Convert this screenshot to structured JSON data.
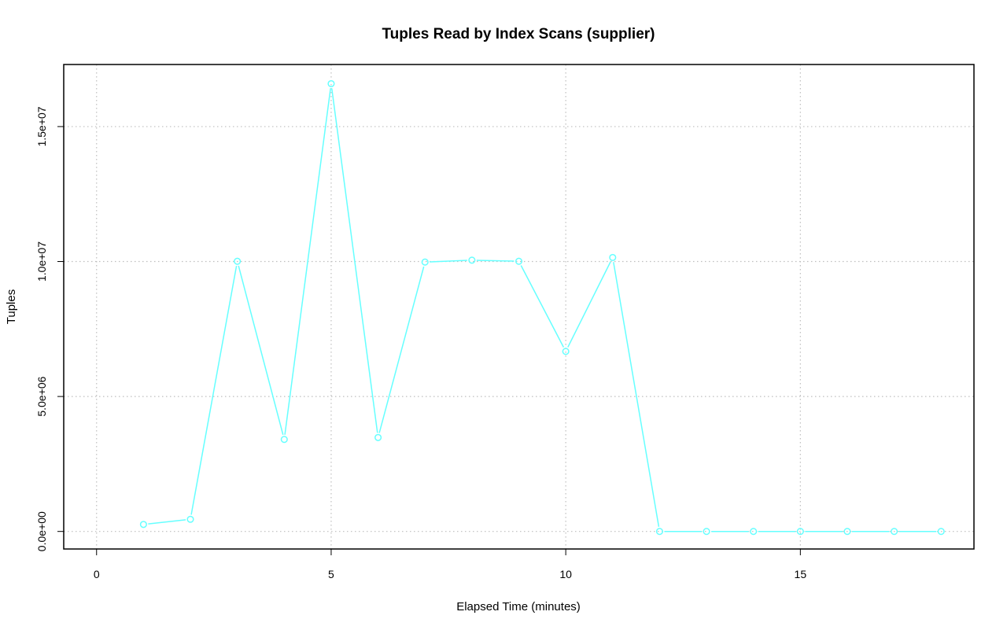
{
  "chart_data": {
    "type": "line",
    "title": "Tuples Read by Index Scans (supplier)",
    "xlabel": "Elapsed Time (minutes)",
    "ylabel": "Tuples",
    "xlim": [
      -0.7,
      18.7
    ],
    "ylim": [
      -650000,
      17300000
    ],
    "x_ticks": [
      0,
      5,
      10,
      15
    ],
    "x_tick_labels": [
      "0",
      "5",
      "10",
      "15"
    ],
    "y_ticks": [
      0,
      5000000,
      10000000,
      15000000
    ],
    "y_tick_labels": [
      "0.0e+00",
      "5.0e+06",
      "1.0e+07",
      "1.5e+07"
    ],
    "grid": true,
    "colors": {
      "series": "#66ffff",
      "grid": "#bebebe",
      "axes": "#000000"
    },
    "series": [
      {
        "x": [
          1,
          2,
          3,
          4,
          5,
          6,
          7,
          8,
          9,
          10,
          11,
          12,
          13,
          14,
          15,
          16,
          17,
          18
        ],
        "values": [
          260000,
          450000,
          10010000,
          3410000,
          16590000,
          3480000,
          9980000,
          10050000,
          10010000,
          6670000,
          10150000,
          0,
          0,
          0,
          0,
          0,
          0,
          0
        ]
      }
    ]
  }
}
